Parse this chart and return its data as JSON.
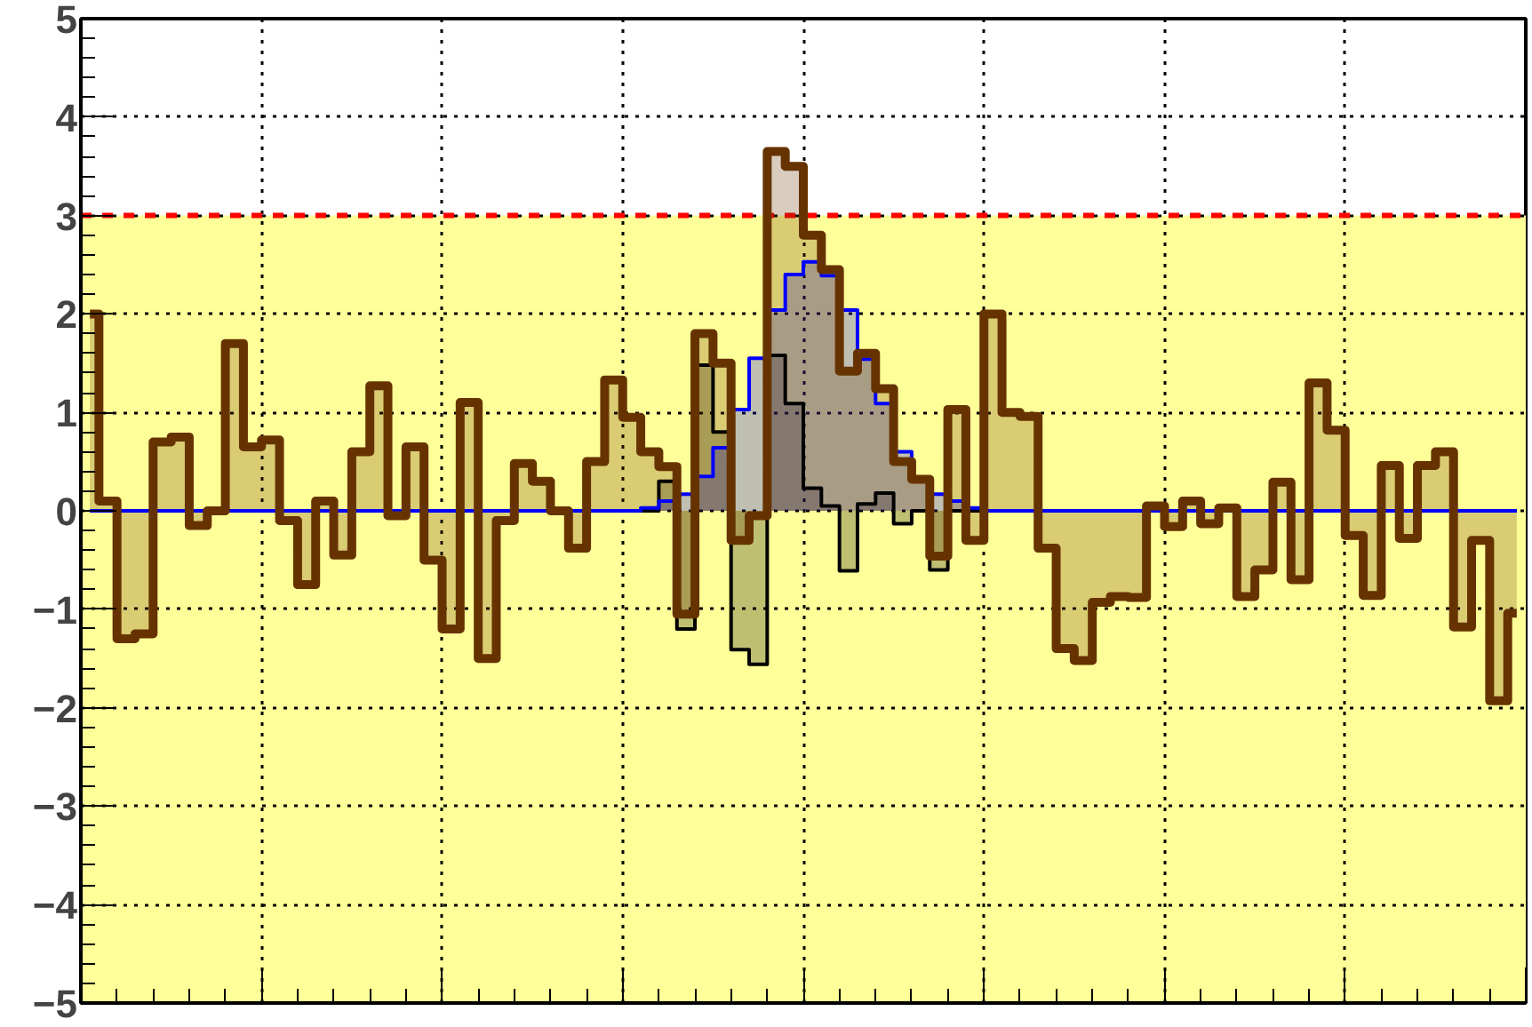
{
  "chart_data": {
    "type": "area",
    "categories": [
      null,
      null,
      null,
      null,
      null,
      null,
      null,
      null,
      null,
      null,
      null,
      null,
      null,
      null,
      null,
      null,
      null,
      null,
      null,
      null,
      null,
      null,
      null,
      null,
      null,
      null,
      null,
      null,
      null,
      null,
      null,
      null,
      null,
      null,
      null,
      null,
      null,
      null,
      null,
      null,
      null,
      null,
      null,
      null,
      null,
      null,
      null,
      null,
      null,
      null,
      null,
      null,
      null,
      null,
      null,
      null,
      null,
      null,
      null,
      null,
      null,
      null,
      null,
      null,
      null,
      null,
      null,
      null,
      null,
      null,
      null,
      null,
      null,
      null,
      null,
      null,
      null,
      null,
      null,
      null
    ],
    "series": [
      {
        "color": "#000000",
        "values": [
          0,
          0,
          0,
          0,
          0,
          0,
          0,
          0,
          0,
          0,
          0,
          0,
          0,
          0,
          0,
          0,
          0,
          0,
          0,
          0,
          0,
          0,
          0,
          0,
          0,
          0,
          0,
          0,
          0,
          0,
          0,
          0,
          0.3,
          -1.2,
          1.48,
          0.8,
          -1.41,
          -1.56,
          1.58,
          1.09,
          0.23,
          0.05,
          -0.61,
          0.07,
          0.18,
          -0.13,
          0,
          -0.6,
          0,
          0,
          0,
          0,
          0,
          0,
          0,
          0,
          0,
          0,
          0,
          0,
          0,
          0,
          0,
          0,
          0,
          0,
          0,
          0,
          0,
          0,
          0,
          0,
          0,
          0,
          0,
          0,
          0,
          0,
          0,
          0
        ]
      },
      {
        "color": "#0000ff",
        "values": [
          0,
          0,
          0,
          0,
          0,
          0,
          0,
          0,
          0,
          0,
          0,
          0,
          0,
          0,
          0,
          0,
          0,
          0,
          0,
          0,
          0,
          0,
          0,
          0,
          0,
          0,
          0,
          0,
          0,
          0,
          0,
          0.03,
          0.1,
          0.17,
          0.35,
          0.64,
          1.03,
          1.55,
          2.04,
          2.4,
          2.53,
          2.39,
          2.04,
          1.54,
          1.09,
          0.6,
          0.3,
          0.17,
          0.1,
          0.03,
          0,
          0,
          0,
          0,
          0,
          0,
          0,
          0,
          0,
          0,
          0,
          0,
          0,
          0,
          0,
          0,
          0,
          0,
          0,
          0,
          0,
          0,
          0,
          0,
          0,
          0,
          0,
          0,
          0,
          0
        ]
      },
      {
        "color": "#663300",
        "values": [
          2.0,
          0.1,
          -1.3,
          -1.25,
          0.7,
          0.75,
          -0.15,
          0.0,
          1.7,
          0.65,
          0.72,
          -0.1,
          -0.75,
          0.1,
          -0.45,
          0.6,
          1.27,
          -0.05,
          0.65,
          -0.5,
          -1.2,
          1.1,
          -1.5,
          -0.1,
          0.48,
          0.3,
          0.0,
          -0.38,
          0.5,
          1.33,
          0.95,
          0.6,
          0.45,
          -1.05,
          1.8,
          1.5,
          -0.3,
          -0.05,
          3.65,
          3.5,
          2.8,
          2.45,
          1.42,
          1.6,
          1.24,
          0.5,
          0.32,
          -0.46,
          1.03,
          -0.3,
          2.0,
          1.0,
          0.96,
          -0.38,
          -1.4,
          -1.52,
          -0.93,
          -0.87,
          -0.88,
          0.05,
          -0.16,
          0.1,
          -0.13,
          0.03,
          -0.87,
          -0.6,
          0.29,
          -0.7,
          1.3,
          0.82,
          -0.25,
          -0.86,
          0.46,
          -0.28,
          0.46,
          0.6,
          -1.18,
          -0.3,
          -1.93,
          -1.04
        ]
      }
    ],
    "ylim": [
      -5,
      5
    ],
    "yticks": [
      {
        "value": -5,
        "label": "−5"
      },
      {
        "value": -4,
        "label": "−4"
      },
      {
        "value": -3,
        "label": "−3"
      },
      {
        "value": -2,
        "label": "−2"
      },
      {
        "value": -1,
        "label": "−1"
      },
      0,
      1,
      2,
      3,
      4,
      5
    ],
    "tick_labels": "y",
    "grid": true,
    "bands": [
      {
        "axis": "y",
        "from": -5,
        "to": 3,
        "color": "#ffff99"
      }
    ],
    "ref_lines": [
      {
        "axis": "y",
        "value": 3,
        "color": "#ff0000",
        "line_style": "dashed"
      }
    ]
  }
}
